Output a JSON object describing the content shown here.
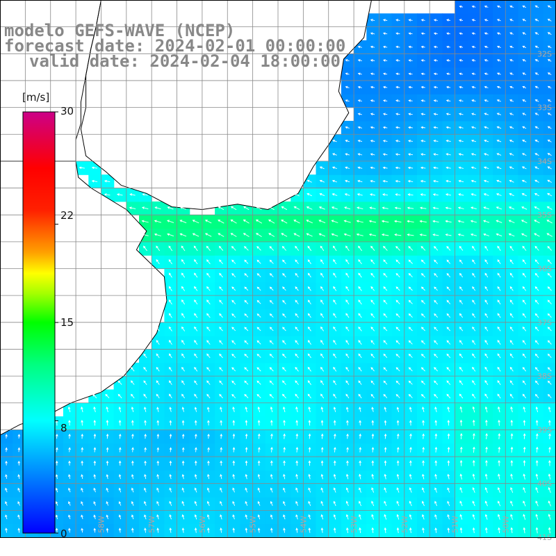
{
  "title": {
    "line1": "modelo GEFS-WAVE (NCEP)",
    "line2": "forecast date: 2024-02-01 00:00:00",
    "line3": "valid date: 2024-02-04 18:00:00"
  },
  "colorbar": {
    "unit_label": "[m/s]",
    "ticks": [
      "30",
      "22",
      "15",
      "8",
      "0"
    ],
    "tick_values": [
      30,
      22,
      15,
      8,
      0
    ],
    "stops": [
      {
        "v": 0,
        "color": "#0000ff"
      },
      {
        "v": 4,
        "color": "#0080ff"
      },
      {
        "v": 8,
        "color": "#00ffff"
      },
      {
        "v": 12,
        "color": "#00ff80"
      },
      {
        "v": 15,
        "color": "#00ff00"
      },
      {
        "v": 17,
        "color": "#a0ff00"
      },
      {
        "v": 18.5,
        "color": "#ffff00"
      },
      {
        "v": 20,
        "color": "#ffa000"
      },
      {
        "v": 23,
        "color": "#ff2000"
      },
      {
        "v": 26,
        "color": "#ff0000"
      },
      {
        "v": 30,
        "color": "#cc0088"
      }
    ]
  },
  "map": {
    "lon_range": [
      -60,
      -49
    ],
    "lat_range": [
      -41,
      -31
    ],
    "lat_labels": [
      "32S",
      "33S",
      "34S",
      "35S",
      "36S",
      "37S",
      "38S",
      "39S",
      "40S",
      "41S"
    ],
    "lon_labels": [
      "59W",
      "58W",
      "57W",
      "56W",
      "55W",
      "54W",
      "53W",
      "52W",
      "51W",
      "50W"
    ],
    "grid_color": "#888888",
    "land_color": "#ffffff",
    "coast_color": "#000000",
    "arrow_color": "#ffffff"
  }
}
